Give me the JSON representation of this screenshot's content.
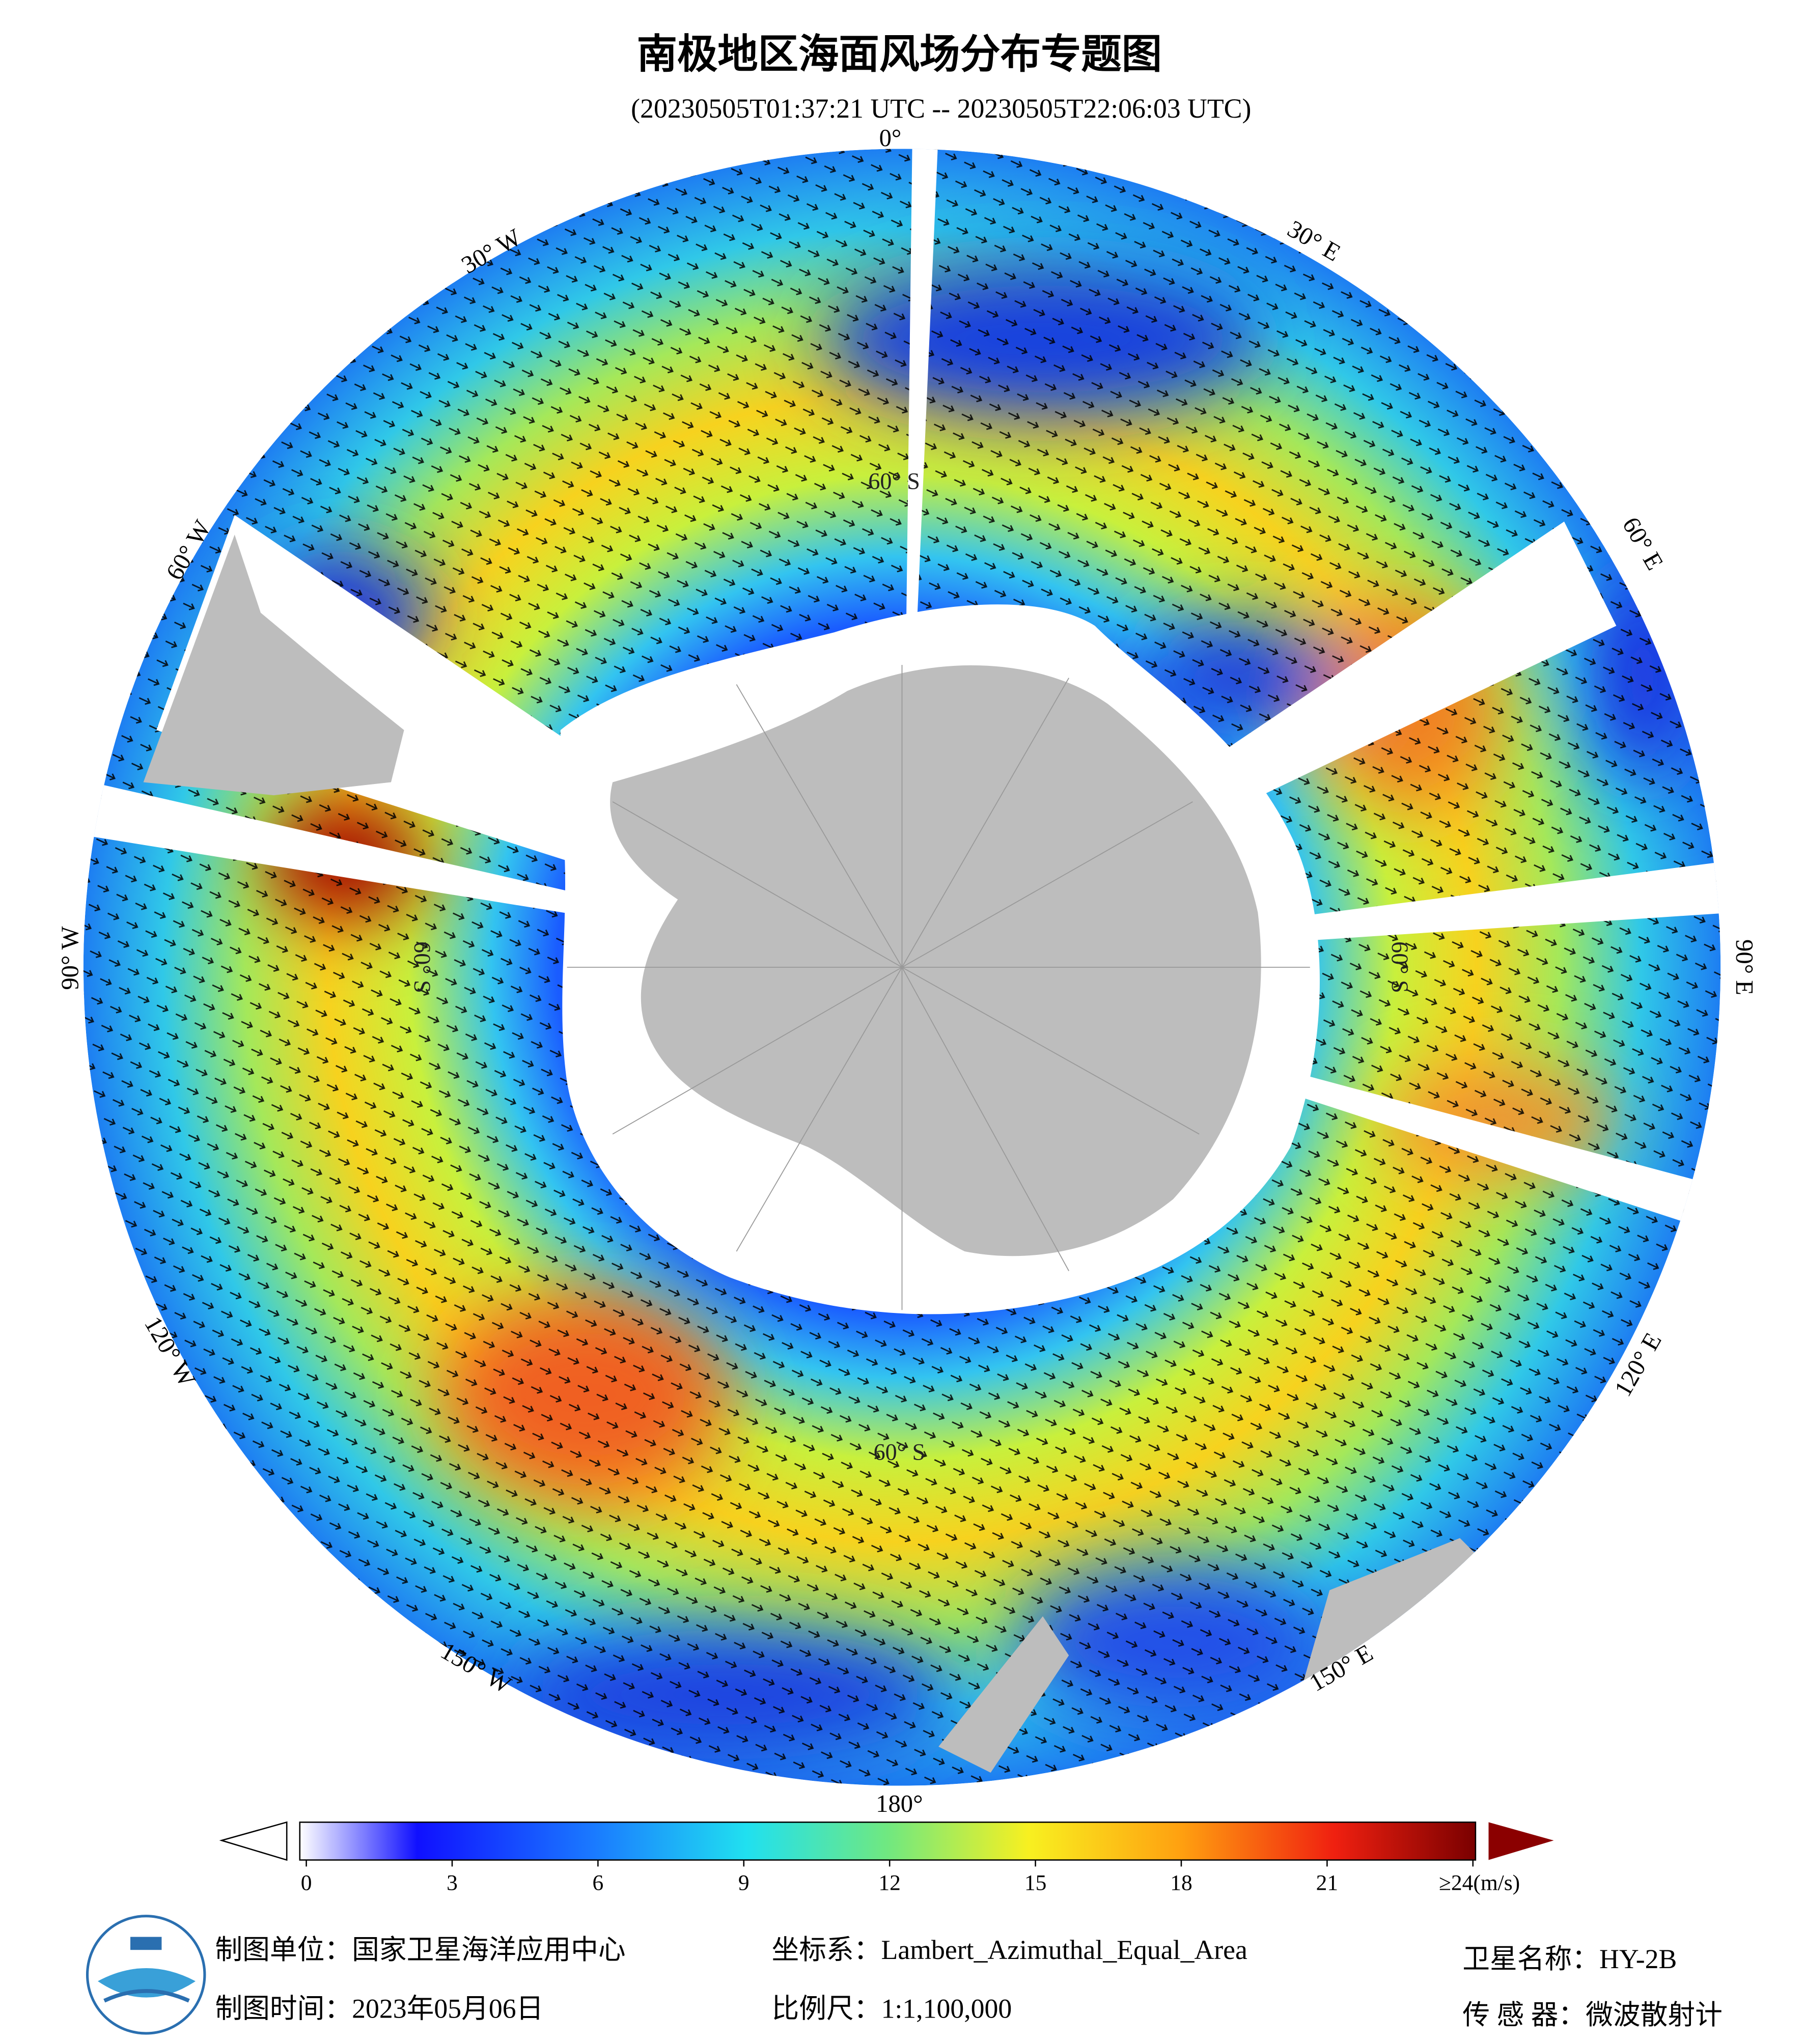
{
  "title": "南极地区海面风场分布专题图",
  "subtitle": "(20230505T01:37:21 UTC -- 20230505T22:06:03 UTC)",
  "map": {
    "lon_labels": [
      "0°",
      "30° E",
      "60° E",
      "90° E",
      "120° E",
      "150° E",
      "180°",
      "150° W",
      "120° W",
      "90° W",
      "60° W",
      "30° W"
    ],
    "lat_labels": [
      "60° S",
      "60° S",
      "60° S",
      "60° S"
    ]
  },
  "colorbar": {
    "range": [
      0,
      24
    ],
    "ticks": [
      0,
      3,
      6,
      9,
      12,
      15,
      18,
      21,
      {
        "value": 24,
        "label": "≥24(m/s)"
      }
    ]
  },
  "footer": {
    "producer": "制图单位：国家卫星海洋应用中心",
    "date": "制图时间：2023年05月06日",
    "projection": "坐标系：Lambert_Azimuthal_Equal_Area",
    "scale": "比例尺：1:1,100,000",
    "satellite": "卫星名称：HY-2B",
    "sensor": "传 感 器：微波散射计"
  }
}
